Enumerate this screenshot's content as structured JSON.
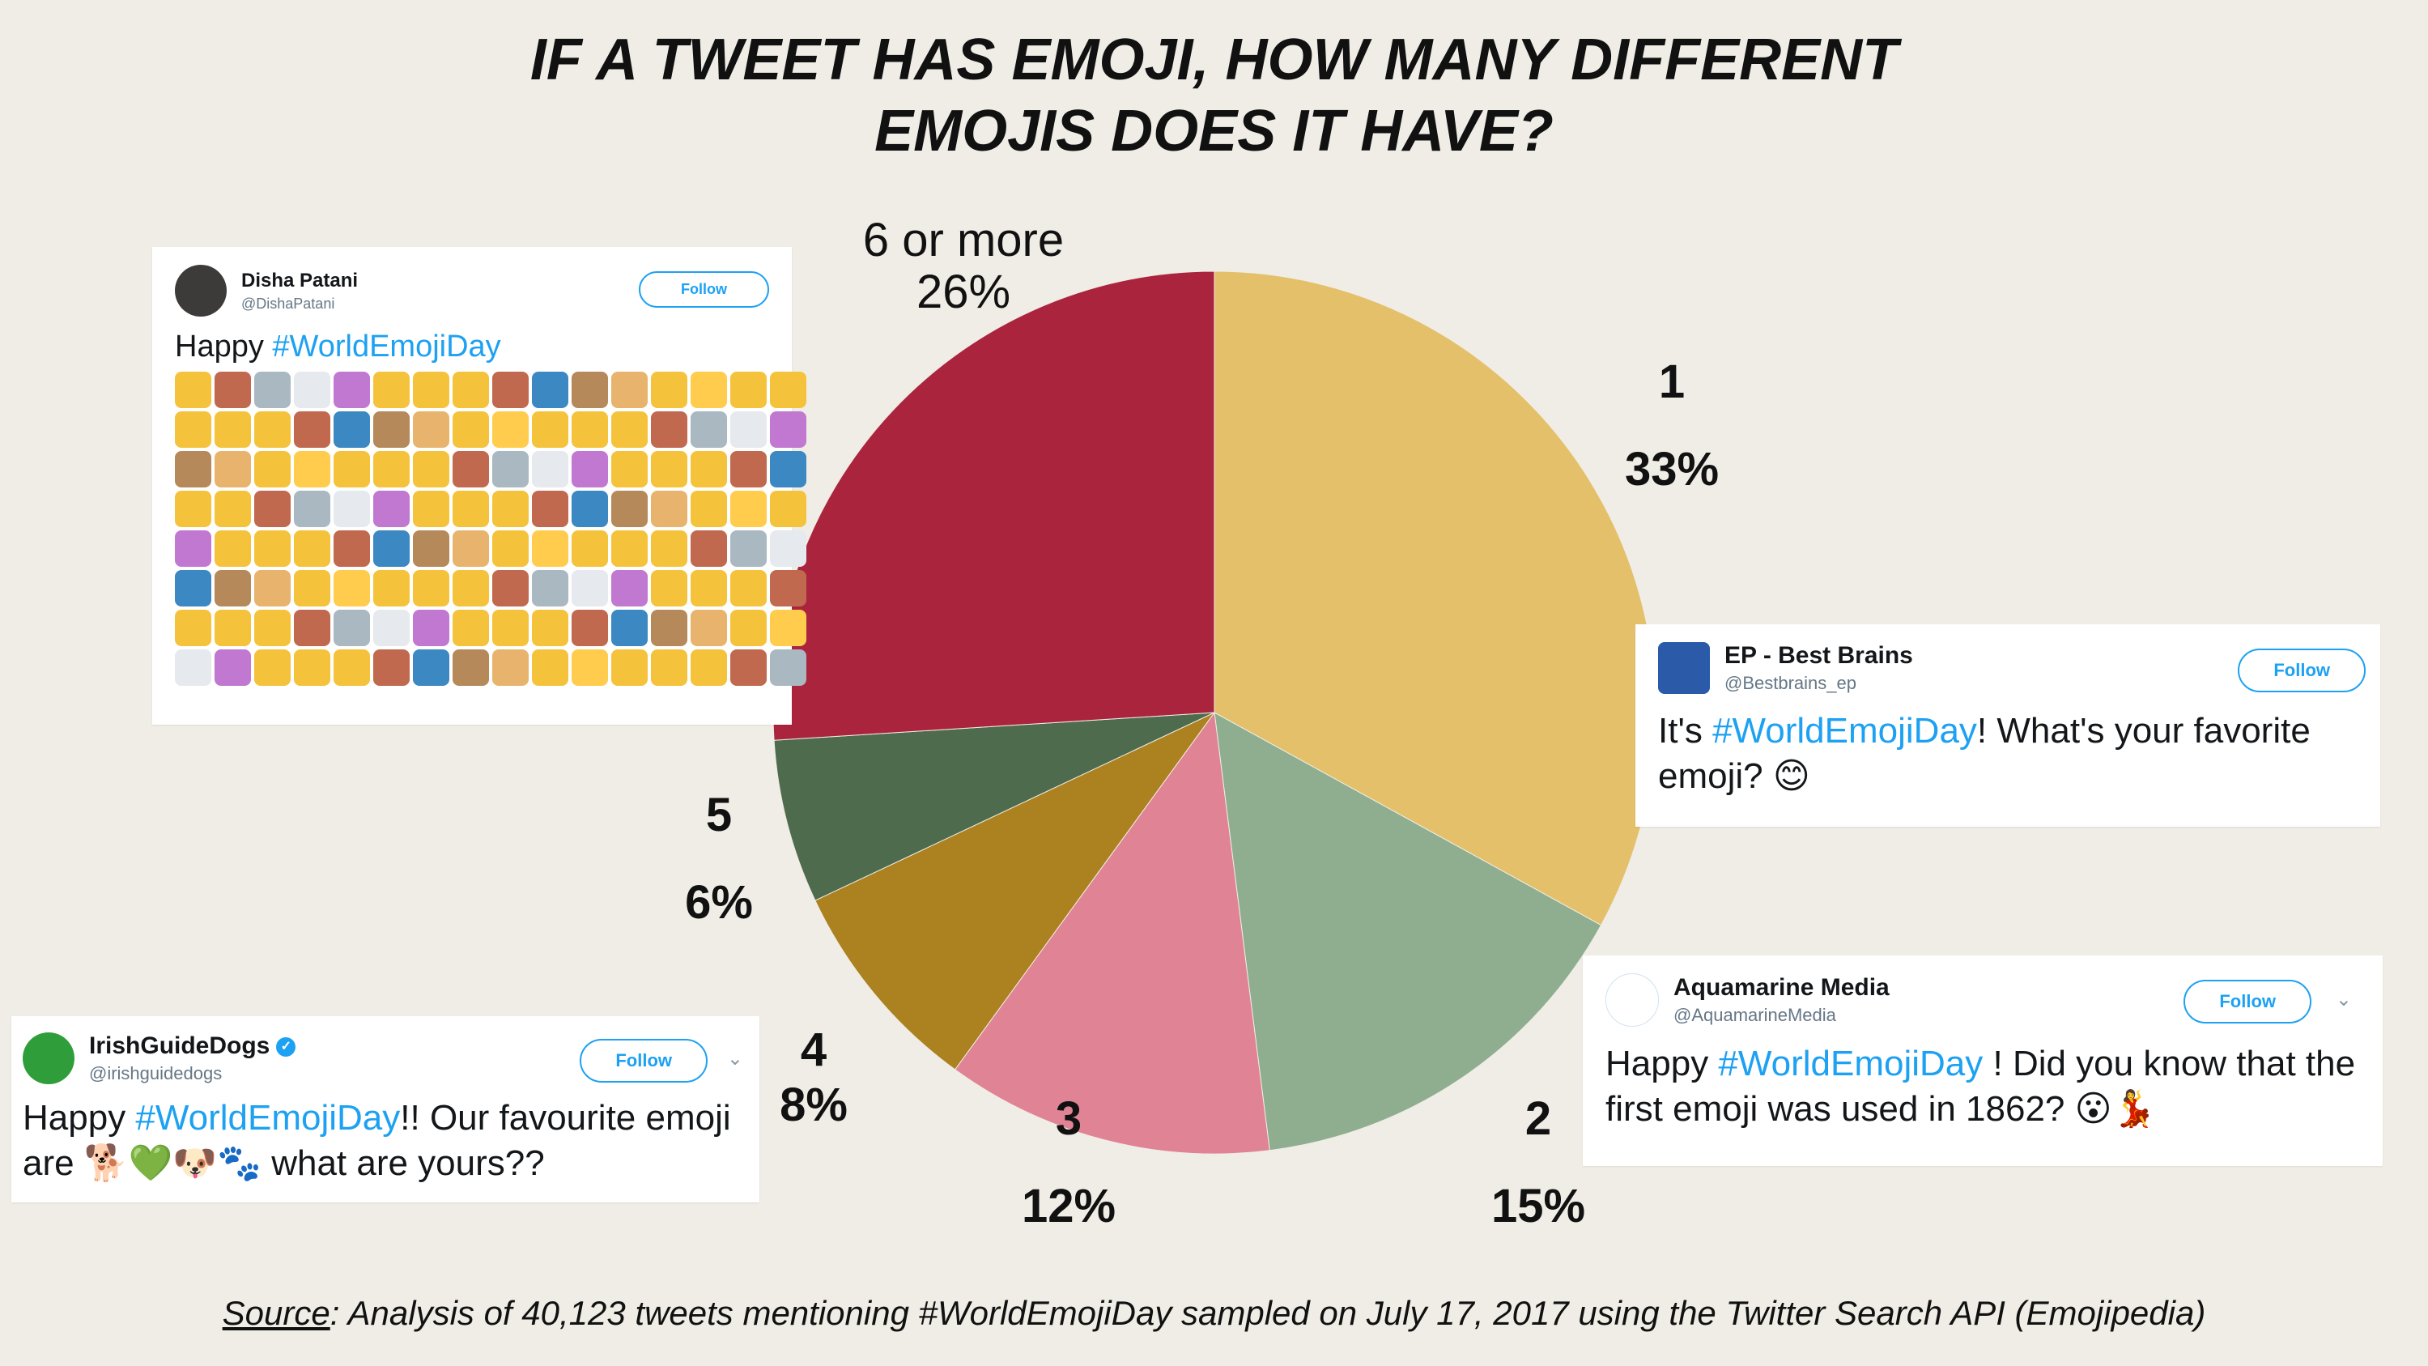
{
  "chart_data": {
    "type": "pie",
    "title_line1": "IF A TWEET HAS EMOJI, HOW MANY DIFFERENT",
    "title_line2": "EMOJIS DOES IT HAVE?",
    "categories": [
      "1",
      "2",
      "3",
      "4",
      "5",
      "6 or more"
    ],
    "values": [
      33,
      15,
      12,
      8,
      6,
      26
    ],
    "value_labels": [
      "33%",
      "15%",
      "12%",
      "8%",
      "6%",
      "26%"
    ],
    "colors": [
      "#e4c06a",
      "#8fae8f",
      "#e08394",
      "#ac8120",
      "#4f6b4d",
      "#ab243e"
    ]
  },
  "source": {
    "label": "Source",
    "text": ": Analysis of 40,123 tweets mentioning #WorldEmojiDay sampled on July 17, 2017 using the Twitter Search API (Emojipedia)"
  },
  "tweets": {
    "disha": {
      "name": "Disha Patani",
      "handle": "@DishaPatani",
      "follow": "Follow",
      "text_before": "Happy ",
      "hashtag": "#WorldEmojiDay",
      "emoji_colors": [
        "#f5c33b",
        "#f5c33b",
        "#f5c33b",
        "#f5c33b",
        "#f5c33b",
        "#e6e9ed",
        "#b5895a",
        "#c1694f",
        "#c1694f",
        "#f5c33b",
        "#f5c33b",
        "#ffcc4d",
        "#c178d0",
        "#e8b46d",
        "#aab8c2",
        "#3b88c3"
      ]
    },
    "ep": {
      "name": "EP - Best Brains",
      "handle": "@Bestbrains_ep",
      "follow": "Follow",
      "text_before": "It's ",
      "hashtag": "#WorldEmojiDay",
      "text_after": "! What's your favorite emoji? ",
      "emoji": "😊"
    },
    "aquamarine": {
      "name": "Aquamarine Media",
      "handle": "@AquamarineMedia",
      "follow": "Follow",
      "text_before": "Happy ",
      "hashtag": "#WorldEmojiDay",
      "text_after": " ! Did you know that the first emoji was used in 1862? ",
      "emoji": "😮💃"
    },
    "irish": {
      "name": "IrishGuideDogs",
      "handle": "@irishguidedogs",
      "follow": "Follow",
      "text_before": "Happy ",
      "hashtag": "#WorldEmojiDay",
      "text_after": "!! Our favourite emoji are ",
      "emoji": "🐕💚🐶🐾",
      "text_end": " what are yours??"
    }
  }
}
